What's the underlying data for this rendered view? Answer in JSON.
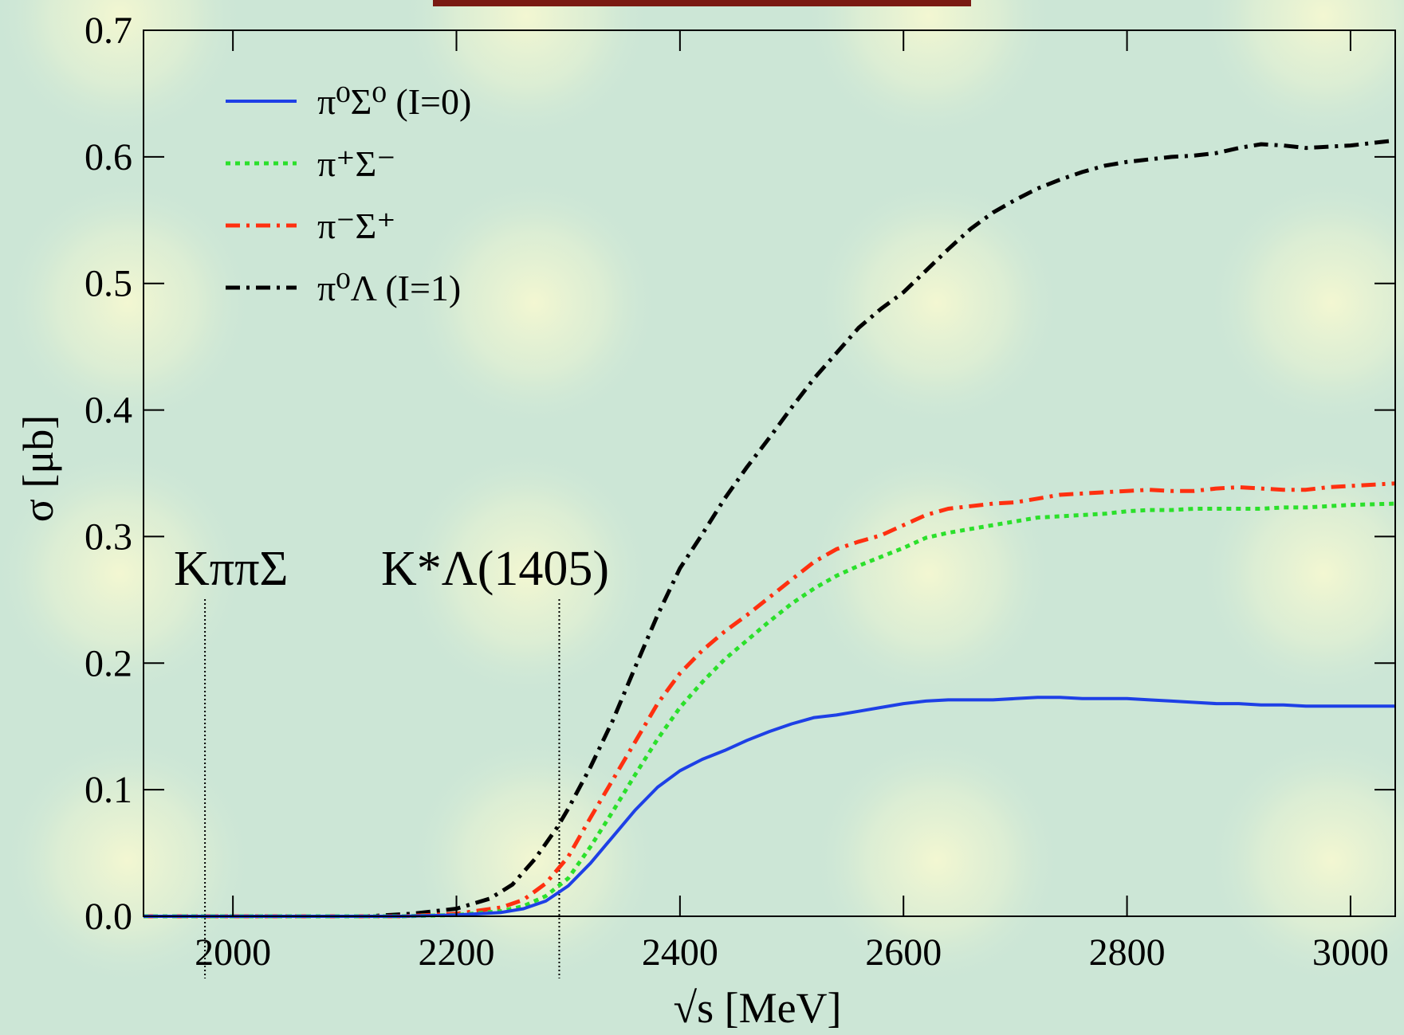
{
  "colors": {
    "background": "#cce6d6",
    "glow": "#f3f7d2",
    "title_bar": "#7a1a12"
  },
  "chart_data": {
    "type": "line",
    "title": "",
    "xlabel": "√s [MeV]",
    "ylabel": "σ [μb]",
    "xlim": [
      1920,
      3040
    ],
    "ylim": [
      0,
      0.7
    ],
    "xticks": [
      2000,
      2200,
      2400,
      2600,
      2800,
      3000
    ],
    "xtick_labels": [
      "2000",
      "2200",
      "2400",
      "2600",
      "2800",
      "3000"
    ],
    "yticks": [
      0.0,
      0.1,
      0.2,
      0.3,
      0.4,
      0.5,
      0.6,
      0.7
    ],
    "ytick_labels": [
      "0.0",
      "0.1",
      "0.2",
      "0.3",
      "0.4",
      "0.5",
      "0.6",
      "0.7"
    ],
    "grid": false,
    "legend_position": "top-left",
    "series": [
      {
        "name": "π⁰Σ⁰ (I=0)",
        "color": "#1e40e6",
        "style": "solid",
        "points": [
          [
            1920,
            0
          ],
          [
            2150,
            0
          ],
          [
            2200,
            0.001
          ],
          [
            2240,
            0.003
          ],
          [
            2260,
            0.006
          ],
          [
            2280,
            0.012
          ],
          [
            2300,
            0.024
          ],
          [
            2320,
            0.042
          ],
          [
            2340,
            0.063
          ],
          [
            2360,
            0.084
          ],
          [
            2380,
            0.102
          ],
          [
            2400,
            0.115
          ],
          [
            2420,
            0.124
          ],
          [
            2440,
            0.131
          ],
          [
            2460,
            0.139
          ],
          [
            2480,
            0.146
          ],
          [
            2500,
            0.152
          ],
          [
            2520,
            0.157
          ],
          [
            2540,
            0.159
          ],
          [
            2560,
            0.162
          ],
          [
            2580,
            0.165
          ],
          [
            2600,
            0.168
          ],
          [
            2620,
            0.17
          ],
          [
            2640,
            0.171
          ],
          [
            2660,
            0.171
          ],
          [
            2680,
            0.171
          ],
          [
            2700,
            0.172
          ],
          [
            2720,
            0.173
          ],
          [
            2740,
            0.173
          ],
          [
            2760,
            0.172
          ],
          [
            2780,
            0.172
          ],
          [
            2800,
            0.172
          ],
          [
            2820,
            0.171
          ],
          [
            2840,
            0.17
          ],
          [
            2860,
            0.169
          ],
          [
            2880,
            0.168
          ],
          [
            2900,
            0.168
          ],
          [
            2920,
            0.167
          ],
          [
            2940,
            0.167
          ],
          [
            2960,
            0.166
          ],
          [
            2980,
            0.166
          ],
          [
            3000,
            0.166
          ],
          [
            3040,
            0.166
          ]
        ]
      },
      {
        "name": "π⁺Σ⁻",
        "color": "#2be02b",
        "style": "dotted",
        "points": [
          [
            1920,
            0
          ],
          [
            2150,
            0
          ],
          [
            2200,
            0.001
          ],
          [
            2240,
            0.004
          ],
          [
            2260,
            0.008
          ],
          [
            2280,
            0.016
          ],
          [
            2300,
            0.03
          ],
          [
            2320,
            0.055
          ],
          [
            2340,
            0.083
          ],
          [
            2360,
            0.112
          ],
          [
            2380,
            0.14
          ],
          [
            2400,
            0.165
          ],
          [
            2420,
            0.185
          ],
          [
            2440,
            0.203
          ],
          [
            2460,
            0.218
          ],
          [
            2480,
            0.233
          ],
          [
            2500,
            0.247
          ],
          [
            2520,
            0.259
          ],
          [
            2540,
            0.269
          ],
          [
            2560,
            0.277
          ],
          [
            2580,
            0.284
          ],
          [
            2600,
            0.291
          ],
          [
            2620,
            0.299
          ],
          [
            2640,
            0.303
          ],
          [
            2660,
            0.306
          ],
          [
            2680,
            0.309
          ],
          [
            2700,
            0.312
          ],
          [
            2720,
            0.315
          ],
          [
            2740,
            0.316
          ],
          [
            2760,
            0.317
          ],
          [
            2780,
            0.318
          ],
          [
            2800,
            0.32
          ],
          [
            2820,
            0.321
          ],
          [
            2840,
            0.321
          ],
          [
            2860,
            0.322
          ],
          [
            2880,
            0.322
          ],
          [
            2900,
            0.322
          ],
          [
            2920,
            0.322
          ],
          [
            2940,
            0.323
          ],
          [
            2960,
            0.323
          ],
          [
            2980,
            0.324
          ],
          [
            3000,
            0.325
          ],
          [
            3040,
            0.326
          ]
        ]
      },
      {
        "name": "π⁻Σ⁺",
        "color": "#ff3010",
        "style": "dashdot",
        "points": [
          [
            1920,
            0
          ],
          [
            2150,
            0
          ],
          [
            2200,
            0.002
          ],
          [
            2240,
            0.007
          ],
          [
            2260,
            0.013
          ],
          [
            2280,
            0.026
          ],
          [
            2300,
            0.047
          ],
          [
            2320,
            0.078
          ],
          [
            2340,
            0.108
          ],
          [
            2360,
            0.138
          ],
          [
            2380,
            0.168
          ],
          [
            2400,
            0.192
          ],
          [
            2420,
            0.21
          ],
          [
            2440,
            0.225
          ],
          [
            2460,
            0.238
          ],
          [
            2480,
            0.252
          ],
          [
            2500,
            0.266
          ],
          [
            2520,
            0.28
          ],
          [
            2540,
            0.29
          ],
          [
            2560,
            0.296
          ],
          [
            2580,
            0.301
          ],
          [
            2600,
            0.309
          ],
          [
            2620,
            0.317
          ],
          [
            2640,
            0.322
          ],
          [
            2660,
            0.324
          ],
          [
            2680,
            0.326
          ],
          [
            2700,
            0.327
          ],
          [
            2720,
            0.33
          ],
          [
            2740,
            0.333
          ],
          [
            2760,
            0.334
          ],
          [
            2780,
            0.335
          ],
          [
            2800,
            0.336
          ],
          [
            2820,
            0.337
          ],
          [
            2840,
            0.336
          ],
          [
            2860,
            0.336
          ],
          [
            2880,
            0.338
          ],
          [
            2900,
            0.339
          ],
          [
            2920,
            0.338
          ],
          [
            2940,
            0.337
          ],
          [
            2960,
            0.337
          ],
          [
            2980,
            0.339
          ],
          [
            3000,
            0.34
          ],
          [
            3040,
            0.342
          ]
        ]
      },
      {
        "name": "π⁰Λ (I=1)",
        "color": "#000000",
        "style": "dashdot",
        "points": [
          [
            1920,
            0
          ],
          [
            2120,
            0
          ],
          [
            2160,
            0.002
          ],
          [
            2200,
            0.006
          ],
          [
            2230,
            0.014
          ],
          [
            2250,
            0.025
          ],
          [
            2270,
            0.045
          ],
          [
            2290,
            0.07
          ],
          [
            2300,
            0.085
          ],
          [
            2320,
            0.118
          ],
          [
            2340,
            0.155
          ],
          [
            2360,
            0.197
          ],
          [
            2380,
            0.238
          ],
          [
            2400,
            0.275
          ],
          [
            2420,
            0.302
          ],
          [
            2440,
            0.33
          ],
          [
            2460,
            0.355
          ],
          [
            2480,
            0.378
          ],
          [
            2500,
            0.402
          ],
          [
            2520,
            0.425
          ],
          [
            2540,
            0.445
          ],
          [
            2560,
            0.465
          ],
          [
            2580,
            0.48
          ],
          [
            2600,
            0.493
          ],
          [
            2620,
            0.51
          ],
          [
            2640,
            0.527
          ],
          [
            2660,
            0.543
          ],
          [
            2680,
            0.556
          ],
          [
            2700,
            0.566
          ],
          [
            2720,
            0.575
          ],
          [
            2740,
            0.582
          ],
          [
            2760,
            0.588
          ],
          [
            2780,
            0.593
          ],
          [
            2800,
            0.596
          ],
          [
            2820,
            0.598
          ],
          [
            2840,
            0.6
          ],
          [
            2860,
            0.601
          ],
          [
            2880,
            0.603
          ],
          [
            2900,
            0.607
          ],
          [
            2920,
            0.61
          ],
          [
            2940,
            0.609
          ],
          [
            2960,
            0.607
          ],
          [
            2980,
            0.608
          ],
          [
            3000,
            0.609
          ],
          [
            3040,
            0.613
          ]
        ]
      }
    ],
    "annotations": [
      {
        "text": "KππΣ",
        "x": 1975
      },
      {
        "text": "K*Λ(1405)",
        "x": 2292
      }
    ]
  }
}
